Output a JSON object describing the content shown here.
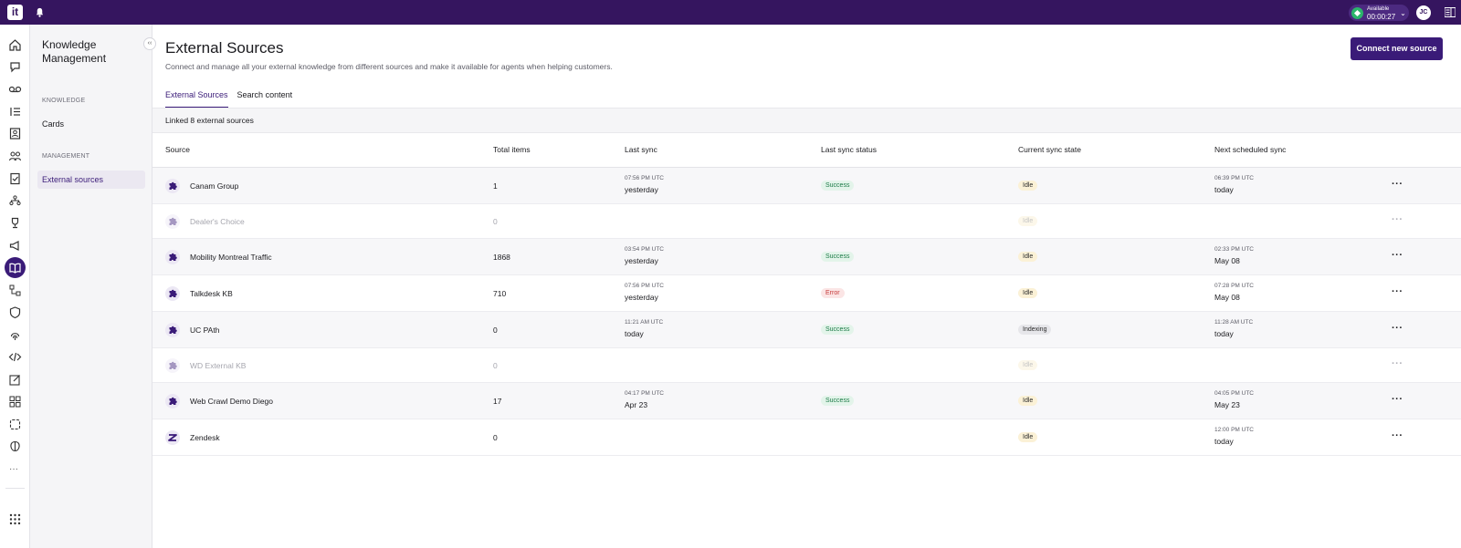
{
  "topbar": {
    "logo": "it",
    "status_label": "Available",
    "status_timer": "00:00:27",
    "user_initials": "JC"
  },
  "sidebar": {
    "title": "Knowledge Management",
    "sections": [
      {
        "label": "KNOWLEDGE",
        "items": [
          {
            "label": "Cards"
          }
        ]
      },
      {
        "label": "MANAGEMENT",
        "items": [
          {
            "label": "External sources",
            "active": true
          }
        ]
      }
    ]
  },
  "main": {
    "title": "External Sources",
    "subtitle": "Connect and manage all your external knowledge from different sources and make it available for agents when helping customers.",
    "connect_button": "Connect new source",
    "tabs": [
      {
        "label": "External Sources",
        "active": true
      },
      {
        "label": "Search content",
        "active": false
      }
    ],
    "linked_count_text": "Linked 8 external sources",
    "table": {
      "columns": [
        "Source",
        "Total items",
        "Last sync",
        "Last sync status",
        "Current sync state",
        "Next scheduled sync"
      ],
      "rows": [
        {
          "source": "Canam Group",
          "total": "1",
          "last_sync_time": "07:56 PM UTC",
          "last_sync_date": "yesterday",
          "status": "Success",
          "state": "Idle",
          "next_time": "06:39 PM UTC",
          "next_date": "today",
          "icon": "puzzle-icon",
          "disabled": false
        },
        {
          "source": "Dealer's Choice",
          "total": "0",
          "last_sync_time": "",
          "last_sync_date": "",
          "status": "",
          "state": "Idle",
          "next_time": "",
          "next_date": "",
          "icon": "puzzle-icon",
          "disabled": true
        },
        {
          "source": "Mobility Montreal Traffic",
          "total": "1868",
          "last_sync_time": "03:54 PM UTC",
          "last_sync_date": "yesterday",
          "status": "Success",
          "state": "Idle",
          "next_time": "02:33 PM UTC",
          "next_date": "May 08",
          "icon": "puzzle-icon",
          "disabled": false
        },
        {
          "source": "Talkdesk KB",
          "total": "710",
          "last_sync_time": "07:56 PM UTC",
          "last_sync_date": "yesterday",
          "status": "Error",
          "state": "Idle",
          "next_time": "07:28 PM UTC",
          "next_date": "May 08",
          "icon": "puzzle-icon",
          "disabled": false
        },
        {
          "source": "UC PAth",
          "total": "0",
          "last_sync_time": "11:21 AM UTC",
          "last_sync_date": "today",
          "status": "Success",
          "state": "Indexing",
          "next_time": "11:28 AM UTC",
          "next_date": "today",
          "icon": "puzzle-icon",
          "disabled": false
        },
        {
          "source": "WD External KB",
          "total": "0",
          "last_sync_time": "",
          "last_sync_date": "",
          "status": "",
          "state": "Idle",
          "next_time": "",
          "next_date": "",
          "icon": "puzzle-icon",
          "disabled": true
        },
        {
          "source": "Web Crawl Demo Diego",
          "total": "17",
          "last_sync_time": "04:17 PM UTC",
          "last_sync_date": "Apr 23",
          "status": "Success",
          "state": "Idle",
          "next_time": "04:05 PM UTC",
          "next_date": "May 23",
          "icon": "puzzle-icon",
          "disabled": false
        },
        {
          "source": "Zendesk",
          "total": "0",
          "last_sync_time": "",
          "last_sync_date": "",
          "status": "",
          "state": "Idle",
          "next_time": "12:00 PM UTC",
          "next_date": "today",
          "icon": "zendesk-icon",
          "disabled": false
        }
      ]
    }
  },
  "colors": {
    "topbar": "#35155f",
    "accent": "#3a1b78",
    "success": "#1b7a46",
    "error": "#c63b3b"
  }
}
